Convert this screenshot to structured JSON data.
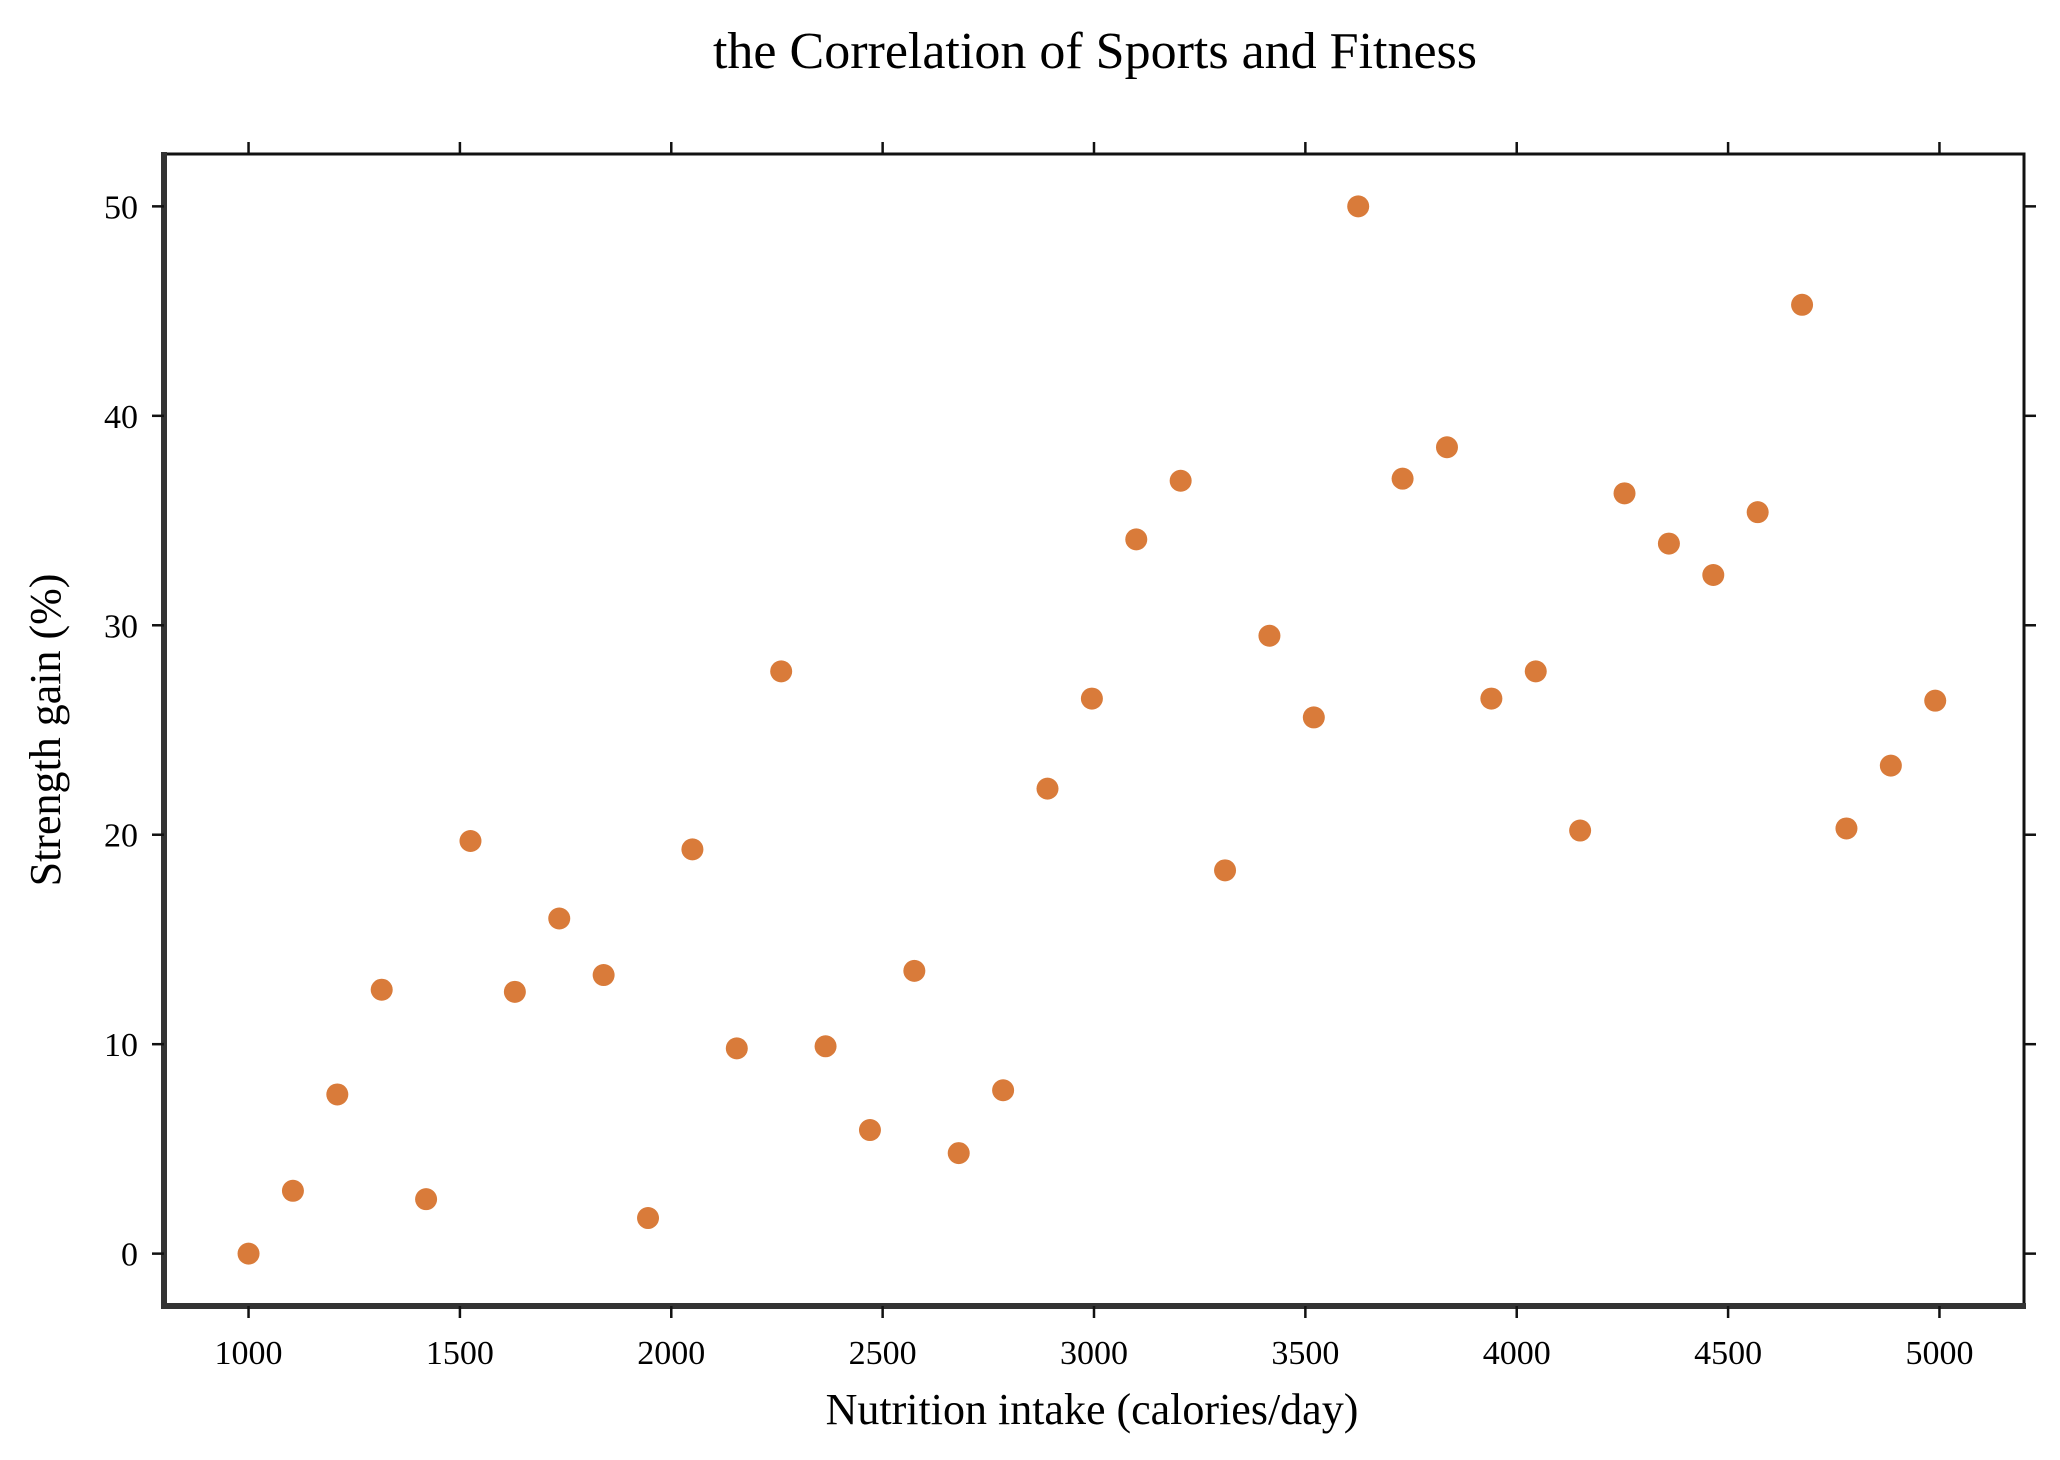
{
  "colors": {
    "marker": "#D97B3A",
    "axis": "#111111",
    "background": "#ffffff"
  },
  "chart_data": {
    "type": "scatter",
    "title": "the Correlation of Sports and Fitness",
    "xlabel": "Nutrition intake (calories/day)",
    "ylabel": "Strength gain (%)",
    "xlim": [
      800,
      5200
    ],
    "ylim": [
      -2.5,
      52.5
    ],
    "xticks": [
      1000,
      1500,
      2000,
      2500,
      3000,
      3500,
      4000,
      4500,
      5000
    ],
    "yticks": [
      0,
      10,
      20,
      30,
      40,
      50
    ],
    "grid": false,
    "legend": "none",
    "series": [
      {
        "x": [
          1000,
          1105,
          1210,
          1315,
          1420,
          1525,
          1630,
          1735,
          1840,
          1945,
          2050,
          2155,
          2260,
          2365,
          2470,
          2575,
          2680,
          2785,
          2890,
          2995,
          3100,
          3205,
          3310,
          3415,
          3520,
          3625,
          3730,
          3835,
          3940,
          4045,
          4150,
          4255,
          4360,
          4465,
          4570,
          4675,
          4780,
          4885,
          4990
        ],
        "y": [
          0,
          3.0,
          7.6,
          12.6,
          2.6,
          19.7,
          12.5,
          16.0,
          13.3,
          1.7,
          19.3,
          9.8,
          27.8,
          9.9,
          5.9,
          13.5,
          4.8,
          7.8,
          22.2,
          26.5,
          34.1,
          36.9,
          18.3,
          29.5,
          25.6,
          50.0,
          37.0,
          38.5,
          26.5,
          27.8,
          20.2,
          36.3,
          33.9,
          32.4,
          35.4,
          45.3,
          20.3,
          23.3,
          26.4
        ]
      }
    ]
  }
}
